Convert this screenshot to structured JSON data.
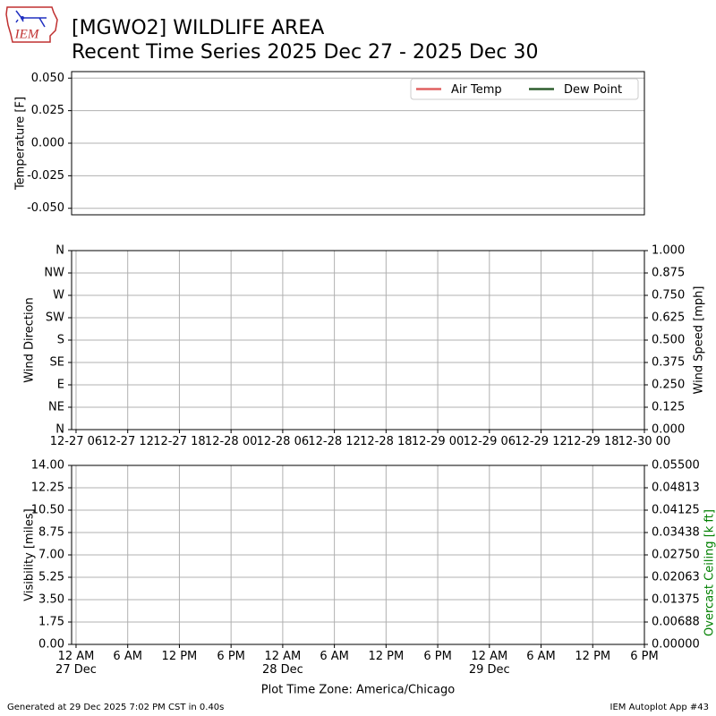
{
  "title": "[MGWO2] WILDLIFE AREA",
  "subtitle": "Recent Time Series 2025 Dec 27 - 2025 Dec 30",
  "logo_text": "IEM",
  "footer_left": "Generated at 29 Dec 2025 7:02 PM CST in 0.40s",
  "footer_right": "IEM Autoplot App #43",
  "chart_data": [
    {
      "type": "line",
      "ylabel": "Temperature [F]",
      "grid": "y",
      "legend": "upper right",
      "xlim": [
        "2025-12-27T05:29Z",
        "2025-12-30T00:00Z"
      ],
      "ylim": [
        -0.055,
        0.055
      ],
      "yticks": [
        {
          "value": -0.05,
          "label": "-0.050"
        },
        {
          "value": -0.025,
          "label": "-0.025"
        },
        {
          "value": 0,
          "label": "0.000"
        },
        {
          "value": 0.025,
          "label": "0.025"
        },
        {
          "value": 0.05,
          "label": "0.050"
        }
      ],
      "x": [],
      "series": [
        {
          "name": "Air Temp",
          "color": "#e06060",
          "values": []
        },
        {
          "name": "Dew Point",
          "color": "#2e5e2e",
          "values": []
        }
      ]
    },
    {
      "type": "line",
      "ylabel": "Wind Direction",
      "y2label": "Wind Speed [mph]",
      "grid": "both",
      "xlim": [
        "2025-12-27T05:29Z",
        "2025-12-30T00:00Z"
      ],
      "xticks": [
        {
          "value": "2025-12-27T06:00Z",
          "label": "12-27 06"
        },
        {
          "value": "2025-12-27T12:00Z",
          "label": "12-27 12"
        },
        {
          "value": "2025-12-27T18:00Z",
          "label": "12-27 18"
        },
        {
          "value": "2025-12-28T00:00Z",
          "label": "12-28 00"
        },
        {
          "value": "2025-12-28T06:00Z",
          "label": "12-28 06"
        },
        {
          "value": "2025-12-28T12:00Z",
          "label": "12-28 12"
        },
        {
          "value": "2025-12-28T18:00Z",
          "label": "12-28 18"
        },
        {
          "value": "2025-12-29T00:00Z",
          "label": "12-29 00"
        },
        {
          "value": "2025-12-29T06:00Z",
          "label": "12-29 06"
        },
        {
          "value": "2025-12-29T12:00Z",
          "label": "12-29 12"
        },
        {
          "value": "2025-12-29T18:00Z",
          "label": "12-29 18"
        },
        {
          "value": "2025-12-30T00:00Z",
          "label": "12-30 00"
        }
      ],
      "ylim": [
        0,
        360
      ],
      "yticks": [
        {
          "value": 0,
          "label": "N"
        },
        {
          "value": 45,
          "label": "NE"
        },
        {
          "value": 90,
          "label": "E"
        },
        {
          "value": 135,
          "label": "SE"
        },
        {
          "value": 180,
          "label": "S"
        },
        {
          "value": 225,
          "label": "SW"
        },
        {
          "value": 270,
          "label": "W"
        },
        {
          "value": 315,
          "label": "NW"
        },
        {
          "value": 360,
          "label": "N"
        }
      ],
      "y2lim": [
        0,
        1
      ],
      "y2ticks": [
        {
          "value": 0,
          "label": "0.000"
        },
        {
          "value": 0.125,
          "label": "0.125"
        },
        {
          "value": 0.25,
          "label": "0.250"
        },
        {
          "value": 0.375,
          "label": "0.375"
        },
        {
          "value": 0.5,
          "label": "0.500"
        },
        {
          "value": 0.625,
          "label": "0.625"
        },
        {
          "value": 0.75,
          "label": "0.750"
        },
        {
          "value": 0.875,
          "label": "0.875"
        },
        {
          "value": 1,
          "label": "1.000"
        }
      ],
      "x": [],
      "series": []
    },
    {
      "type": "line",
      "ylabel": "Visibility [miles]",
      "y2label": "Overcast Ceiling [k ft]",
      "y2label_color": "#008000",
      "grid": "both",
      "xlabel": "Plot Time Zone: America/Chicago",
      "xlim": [
        "2025-12-27T05:29Z",
        "2025-12-30T00:00Z"
      ],
      "xticks": [
        {
          "value": "2025-12-27T06:00Z",
          "label": "12 AM\n27 Dec"
        },
        {
          "value": "2025-12-27T12:00Z",
          "label": "6 AM"
        },
        {
          "value": "2025-12-27T18:00Z",
          "label": "12 PM"
        },
        {
          "value": "2025-12-28T00:00Z",
          "label": "6 PM"
        },
        {
          "value": "2025-12-28T06:00Z",
          "label": "12 AM\n28 Dec"
        },
        {
          "value": "2025-12-28T12:00Z",
          "label": "6 AM"
        },
        {
          "value": "2025-12-28T18:00Z",
          "label": "12 PM"
        },
        {
          "value": "2025-12-29T00:00Z",
          "label": "6 PM"
        },
        {
          "value": "2025-12-29T06:00Z",
          "label": "12 AM\n29 Dec"
        },
        {
          "value": "2025-12-29T12:00Z",
          "label": "6 AM"
        },
        {
          "value": "2025-12-29T18:00Z",
          "label": "12 PM"
        },
        {
          "value": "2025-12-30T00:00Z",
          "label": "6 PM"
        }
      ],
      "ylim": [
        0,
        14
      ],
      "yticks": [
        {
          "value": 0,
          "label": "0.00"
        },
        {
          "value": 1.75,
          "label": "1.75"
        },
        {
          "value": 3.5,
          "label": "3.50"
        },
        {
          "value": 5.25,
          "label": "5.25"
        },
        {
          "value": 7,
          "label": "7.00"
        },
        {
          "value": 8.75,
          "label": "8.75"
        },
        {
          "value": 10.5,
          "label": "10.50"
        },
        {
          "value": 12.25,
          "label": "12.25"
        },
        {
          "value": 14,
          "label": "14.00"
        }
      ],
      "y2lim": [
        0,
        0.055
      ],
      "y2ticks": [
        {
          "value": 0,
          "label": "0.00000"
        },
        {
          "value": 0.006875,
          "label": "0.00688"
        },
        {
          "value": 0.01375,
          "label": "0.01375"
        },
        {
          "value": 0.020625,
          "label": "0.02063"
        },
        {
          "value": 0.0275,
          "label": "0.02750"
        },
        {
          "value": 0.034375,
          "label": "0.03438"
        },
        {
          "value": 0.04125,
          "label": "0.04125"
        },
        {
          "value": 0.048125,
          "label": "0.04813"
        },
        {
          "value": 0.055,
          "label": "0.05500"
        }
      ],
      "x": [],
      "series": []
    }
  ]
}
